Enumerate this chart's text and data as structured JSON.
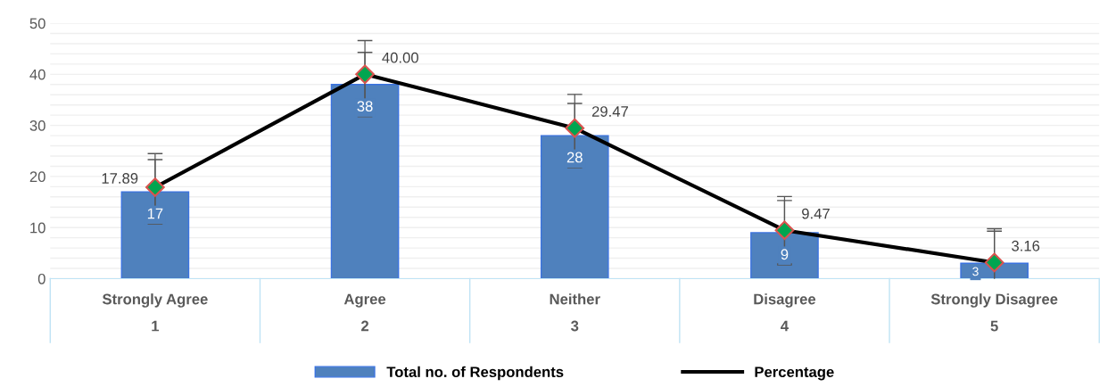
{
  "chart_data": {
    "type": "bar",
    "categories": [
      "Strongly Agree\n1",
      "Agree\n2",
      "Neither\n3",
      "Disagree\n4",
      "Strongly Disagree\n5"
    ],
    "series": [
      {
        "name": "Total no. of Respondents",
        "color": "#4f81bd",
        "values": [
          17,
          38,
          28,
          9,
          3
        ],
        "errors": [
          6.3,
          6.3,
          6.3,
          6.3,
          6.3
        ],
        "value_labels": [
          "17",
          "38",
          "28",
          "9",
          "3"
        ]
      },
      {
        "name": "Percentage",
        "type": "line",
        "color": "#000000",
        "values": [
          17.89,
          40.0,
          29.47,
          9.47,
          3.16
        ],
        "errors": [
          6.6,
          6.6,
          6.6,
          6.6,
          6.6
        ],
        "value_labels": [
          "17.89",
          "40.00",
          "29.47",
          "9.47",
          "3.16"
        ]
      }
    ],
    "ylim": [
      0,
      50
    ],
    "yticks": [
      0,
      {
        "value": 2,
        "label": null
      },
      {
        "value": 4,
        "label": null
      },
      {
        "value": 6,
        "label": null
      },
      {
        "value": 8,
        "label": null
      },
      10,
      {
        "value": 12,
        "label": null
      },
      {
        "value": 14,
        "label": null
      },
      {
        "value": 16,
        "label": null
      },
      {
        "value": 18,
        "label": null
      },
      20,
      {
        "value": 22,
        "label": null
      },
      {
        "value": 24,
        "label": null
      },
      {
        "value": 26,
        "label": null
      },
      {
        "value": 28,
        "label": null
      },
      30,
      {
        "value": 32,
        "label": null
      },
      {
        "value": 34,
        "label": null
      },
      {
        "value": 36,
        "label": null
      },
      {
        "value": 38,
        "label": null
      },
      40,
      {
        "value": 42,
        "label": null
      },
      {
        "value": 44,
        "label": null
      },
      {
        "value": 46,
        "label": null
      },
      {
        "value": 48,
        "label": null
      },
      50
    ],
    "grid": "y",
    "legend": "bottom",
    "marker": "diamond",
    "line_style": "solid"
  }
}
